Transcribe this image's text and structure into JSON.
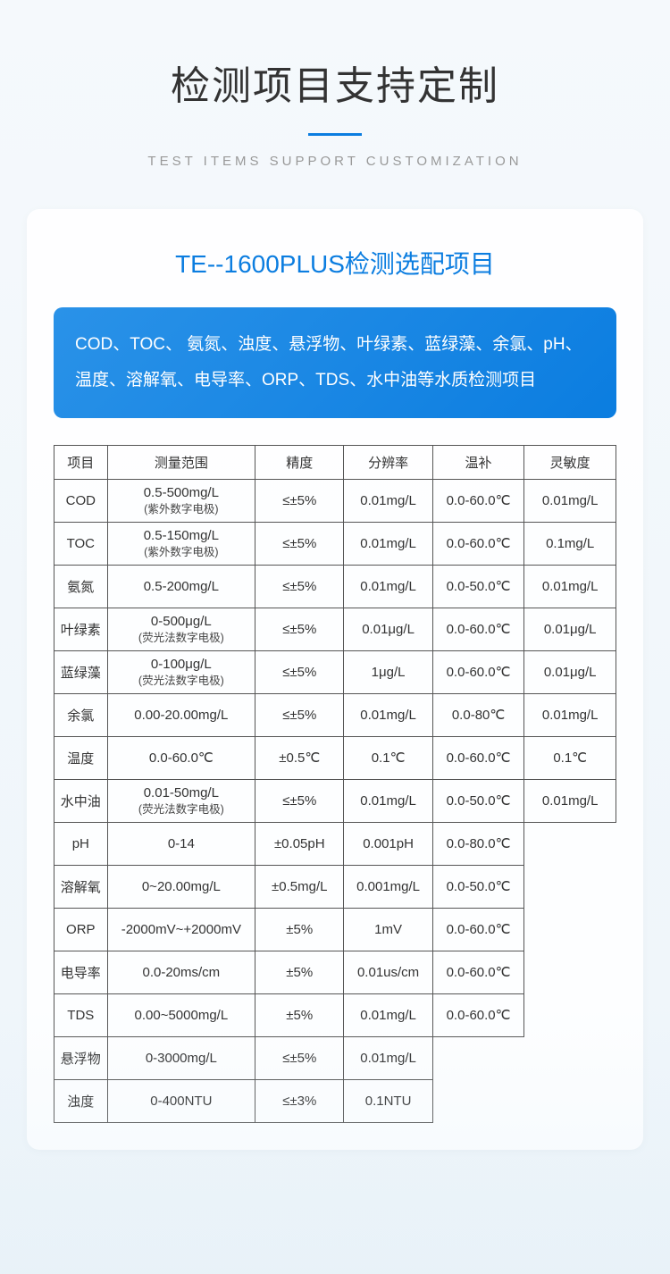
{
  "header": {
    "title_cn": "检测项目支持定制",
    "title_en": "TEST ITEMS SUPPORT CUSTOMIZATION"
  },
  "card": {
    "title": "TE--1600PLUS检测选配项目",
    "description": "COD、TOC、 氨氮、浊度、悬浮物、叶绿素、蓝绿藻、余氯、pH、 温度、溶解氧、电导率、ORP、TDS、水中油等水质检测项目"
  },
  "table": {
    "columns": [
      "项目",
      "测量范围",
      "精度",
      "分辨率",
      "温补",
      "灵敏度"
    ],
    "rows": [
      {
        "item": "COD",
        "range": "0.5-500mg/L",
        "range_note": "(紫外数字电极)",
        "precision": "≤±5%",
        "resolution": "0.01mg/L",
        "temp": "0.0-60.0℃",
        "sens": "0.01mg/L"
      },
      {
        "item": "TOC",
        "range": "0.5-150mg/L",
        "range_note": "(紫外数字电极)",
        "precision": "≤±5%",
        "resolution": "0.01mg/L",
        "temp": "0.0-60.0℃",
        "sens": "0.1mg/L"
      },
      {
        "item": "氨氮",
        "range": "0.5-200mg/L",
        "range_note": "",
        "precision": "≤±5%",
        "resolution": "0.01mg/L",
        "temp": "0.0-50.0℃",
        "sens": "0.01mg/L"
      },
      {
        "item": "叶绿素",
        "range": "0-500μg/L",
        "range_note": "(荧光法数字电极)",
        "precision": "≤±5%",
        "resolution": "0.01μg/L",
        "temp": "0.0-60.0℃",
        "sens": "0.01μg/L"
      },
      {
        "item": "蓝绿藻",
        "range": "0-100μg/L",
        "range_note": "(荧光法数字电极)",
        "precision": "≤±5%",
        "resolution": "1μg/L",
        "temp": "0.0-60.0℃",
        "sens": "0.01μg/L"
      },
      {
        "item": "余氯",
        "range": "0.00-20.00mg/L",
        "range_note": "",
        "precision": "≤±5%",
        "resolution": "0.01mg/L",
        "temp": "0.0-80℃",
        "sens": "0.01mg/L"
      },
      {
        "item": "温度",
        "range": "0.0-60.0℃",
        "range_note": "",
        "precision": "±0.5℃",
        "resolution": "0.1℃",
        "temp": "0.0-60.0℃",
        "sens": "0.1℃"
      },
      {
        "item": "水中油",
        "range": "0.01-50mg/L",
        "range_note": "(荧光法数字电极)",
        "precision": "≤±5%",
        "resolution": "0.01mg/L",
        "temp": "0.0-50.0℃",
        "sens": "0.01mg/L"
      },
      {
        "item": "pH",
        "range": "0-14",
        "range_note": "",
        "precision": "±0.05pH",
        "resolution": "0.001pH",
        "temp": "0.0-80.0℃",
        "sens": ""
      },
      {
        "item": "溶解氧",
        "range": "0~20.00mg/L",
        "range_note": "",
        "precision": "±0.5mg/L",
        "resolution": "0.001mg/L",
        "temp": "0.0-50.0℃",
        "sens": ""
      },
      {
        "item": "ORP",
        "range": "-2000mV~+2000mV",
        "range_note": "",
        "precision": "±5%",
        "resolution": "1mV",
        "temp": "0.0-60.0℃",
        "sens": ""
      },
      {
        "item": "电导率",
        "range": "0.0-20ms/cm",
        "range_note": "",
        "precision": "±5%",
        "resolution": "0.01us/cm",
        "temp": "0.0-60.0℃",
        "sens": ""
      },
      {
        "item": "TDS",
        "range": "0.00~5000mg/L",
        "range_note": "",
        "precision": "±5%",
        "resolution": "0.01mg/L",
        "temp": "0.0-60.0℃",
        "sens": ""
      },
      {
        "item": "悬浮物",
        "range": "0-3000mg/L",
        "range_note": "",
        "precision": "≤±5%",
        "resolution": "0.01mg/L",
        "temp": "",
        "sens": ""
      },
      {
        "item": "浊度",
        "range": "0-400NTU",
        "range_note": "",
        "precision": "≤±3%",
        "resolution": "0.1NTU",
        "temp": "",
        "sens": ""
      }
    ]
  },
  "colors": {
    "primary": "#0b7de0",
    "text": "#333",
    "border": "#555",
    "subtitle": "#999",
    "gradient_start": "#2a92e8",
    "gradient_end": "#0b7de0"
  }
}
